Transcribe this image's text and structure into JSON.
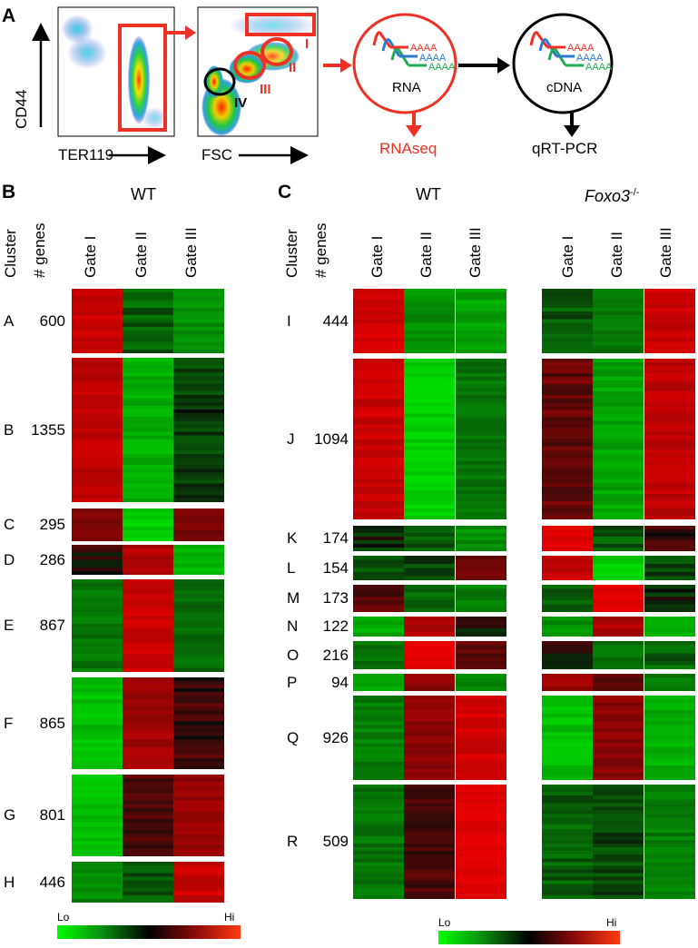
{
  "panelA": {
    "letter": "A",
    "ylabel": "CD44",
    "xlabel1": "TER119",
    "xlabel2": "FSC",
    "gates": [
      "I",
      "II",
      "III",
      "IV"
    ],
    "rna_label": "RNA",
    "cdna_label": "cDNA",
    "poly_a": "AAAA",
    "rnaseq_label": "RNAseq",
    "qrtpcr_label": "qRT-PCR"
  },
  "panelB": {
    "letter": "B",
    "group": "WT",
    "row_header1": "Cluster",
    "row_header2": "# genes",
    "columns": [
      "Gate I",
      "Gate II",
      "Gate III"
    ],
    "clusters": [
      {
        "id": "A",
        "genes": "600",
        "levels": [
          0.85,
          -0.35,
          -0.6
        ]
      },
      {
        "id": "B",
        "genes": "1355",
        "levels": [
          0.8,
          -0.75,
          -0.15
        ]
      },
      {
        "id": "C",
        "genes": "295",
        "levels": [
          0.45,
          -0.95,
          0.45
        ]
      },
      {
        "id": "D",
        "genes": "286",
        "levels": [
          0.1,
          0.75,
          -0.8
        ]
      },
      {
        "id": "E",
        "genes": "867",
        "levels": [
          -0.45,
          0.85,
          -0.4
        ]
      },
      {
        "id": "F",
        "genes": "865",
        "levels": [
          -0.85,
          0.65,
          0.2
        ]
      },
      {
        "id": "G",
        "genes": "801",
        "levels": [
          -0.85,
          0.25,
          0.6
        ]
      },
      {
        "id": "H",
        "genes": "446",
        "levels": [
          -0.55,
          -0.3,
          0.85
        ]
      }
    ],
    "scale_lo": "Lo",
    "scale_hi": "Hi"
  },
  "panelC": {
    "letter": "C",
    "group1": "WT",
    "group2": "Foxo3",
    "group2_sup": "-/-",
    "row_header1": "Cluster",
    "row_header2": "# genes",
    "columns": [
      "Gate I",
      "Gate II",
      "Gate III"
    ],
    "clusters": [
      {
        "id": "I",
        "genes": "444",
        "wt": [
          0.9,
          -0.6,
          -0.7
        ],
        "ko": [
          -0.3,
          -0.45,
          0.85
        ]
      },
      {
        "id": "J",
        "genes": "1094",
        "wt": [
          0.85,
          -0.95,
          -0.45
        ],
        "ko": [
          0.35,
          -0.7,
          0.8
        ]
      },
      {
        "id": "K",
        "genes": "174",
        "wt": [
          -0.1,
          -0.25,
          -0.6
        ],
        "ko": [
          0.95,
          -0.3,
          0.2
        ]
      },
      {
        "id": "L",
        "genes": "154",
        "wt": [
          -0.3,
          -0.2,
          0.4
        ],
        "ko": [
          0.85,
          -0.95,
          -0.2
        ]
      },
      {
        "id": "M",
        "genes": "173",
        "wt": [
          0.3,
          -0.4,
          -0.5
        ],
        "ko": [
          -0.35,
          1.0,
          -0.1
        ]
      },
      {
        "id": "N",
        "genes": "122",
        "wt": [
          -0.75,
          0.75,
          0.05
        ],
        "ko": [
          -0.6,
          0.7,
          -0.7
        ]
      },
      {
        "id": "O",
        "genes": "216",
        "wt": [
          -0.45,
          1.0,
          0.25
        ],
        "ko": [
          0.1,
          -0.45,
          -0.35
        ]
      },
      {
        "id": "P",
        "genes": "94",
        "wt": [
          -0.7,
          0.55,
          -0.6
        ],
        "ko": [
          0.65,
          0.25,
          -0.5
        ]
      },
      {
        "id": "Q",
        "genes": "926",
        "wt": [
          -0.5,
          0.55,
          0.9
        ],
        "ko": [
          -0.85,
          0.55,
          -0.75
        ]
      },
      {
        "id": "R",
        "genes": "509",
        "wt": [
          -0.45,
          0.2,
          1.0
        ],
        "ko": [
          -0.35,
          -0.2,
          -0.5
        ]
      }
    ],
    "scale_lo": "Lo",
    "scale_hi": "Hi"
  },
  "colors": {
    "lo": "#00ff00",
    "mid": "#000000",
    "hi": "#ff2a00",
    "accent_red": "#ee3124"
  }
}
